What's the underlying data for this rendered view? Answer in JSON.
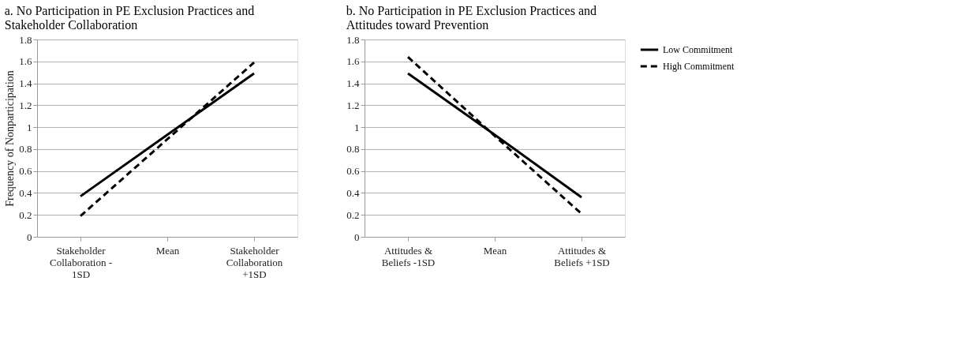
{
  "chart_data": [
    {
      "type": "line",
      "title": "a. No Participation in PE Exclusion Practices and Stakeholder Collaboration",
      "ylabel": "Frequency of Nonparticipation",
      "categories": [
        "Stakeholder Collaboration - 1SD",
        "Mean",
        "Stakeholder Collaboration +1SD"
      ],
      "series": [
        {
          "color": "#000000",
          "line_style": "solid",
          "values": [
            0.37,
            0.93,
            1.49
          ]
        },
        {
          "color": "#000000",
          "line_style": "dashed",
          "values": [
            0.19,
            0.89,
            1.59
          ]
        }
      ],
      "ylim": [
        0,
        1.8
      ],
      "yticks": [
        0,
        0.2,
        0.4,
        0.6,
        0.8,
        1,
        1.2,
        1.4,
        1.6,
        1.8
      ],
      "grid": "y",
      "legend": false,
      "marker": "none"
    },
    {
      "type": "line",
      "title": "b. No Participation in PE Exclusion Practices and Attitudes toward Prevention",
      "categories": [
        "Attitudes & Beliefs  -1SD",
        "Mean",
        "Attitudes & Beliefs +1SD"
      ],
      "series": [
        {
          "name": "Low Commitment",
          "color": "#000000",
          "line_style": "solid",
          "values": [
            1.49,
            0.93,
            0.36
          ]
        },
        {
          "name": "High Commitment",
          "color": "#000000",
          "line_style": "dashed",
          "values": [
            1.64,
            0.92,
            0.21
          ]
        }
      ],
      "ylim": [
        0,
        1.8
      ],
      "yticks": [
        0,
        0.2,
        0.4,
        0.6,
        0.8,
        1,
        1.2,
        1.4,
        1.6,
        1.8
      ],
      "grid": "y",
      "legend": "right",
      "marker": "none"
    }
  ]
}
